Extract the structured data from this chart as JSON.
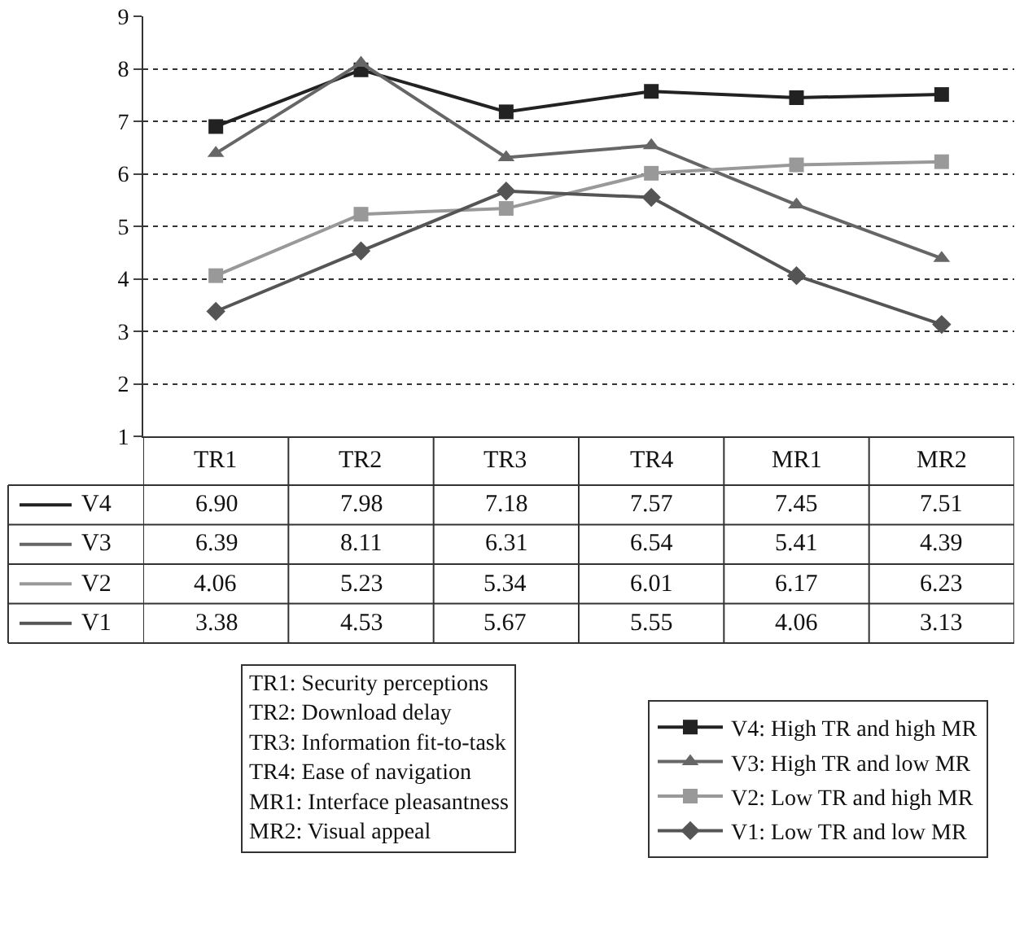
{
  "chart_data": {
    "type": "line",
    "categories": [
      "TR1",
      "TR2",
      "TR3",
      "TR4",
      "MR1",
      "MR2"
    ],
    "series": [
      {
        "name": "V4: High TR and high MR",
        "color": "#222222",
        "marker": "square",
        "values": [
          6.9,
          7.98,
          7.18,
          7.57,
          7.45,
          7.51
        ],
        "value_labels": [
          "6.90",
          "7.98",
          "7.18",
          "7.57",
          "7.45",
          "7.51"
        ]
      },
      {
        "name": "V3: High TR and low MR",
        "color": "#666666",
        "marker": "triangle",
        "values": [
          6.39,
          8.11,
          6.31,
          6.54,
          5.41,
          4.39
        ],
        "value_labels": [
          "6.39",
          "8.11",
          "6.31",
          "6.54",
          "5.41",
          "4.39"
        ]
      },
      {
        "name": "V2: Low TR and high MR",
        "color": "#999999",
        "marker": "square",
        "values": [
          4.06,
          5.23,
          5.34,
          6.01,
          6.17,
          6.23
        ],
        "value_labels": [
          "4.06",
          "5.23",
          "5.34",
          "6.01",
          "6.17",
          "6.23"
        ]
      },
      {
        "name": "V1: Low TR and low MR",
        "color": "#555555",
        "marker": "diamond",
        "values": [
          3.38,
          4.53,
          5.67,
          5.55,
          4.06,
          3.13
        ],
        "value_labels": [
          "3.38",
          "4.53",
          "5.67",
          "5.55",
          "4.06",
          "3.13"
        ]
      }
    ],
    "ylim": [
      1,
      9
    ],
    "yticks": [
      1,
      2,
      3,
      4,
      5,
      6,
      7,
      8,
      9
    ],
    "grid": "y",
    "legend": "bottom right",
    "line_style": "solid",
    "annotations": [
      "TR1: Security perceptions\nTR2: Download delay\nTR3: Information fit-to-task\nTR4: Ease of navigation\nMR1: Interface pleasantness\nMR2: Visual appeal",
      "V4",
      "V3",
      "V2",
      "V1"
    ]
  }
}
